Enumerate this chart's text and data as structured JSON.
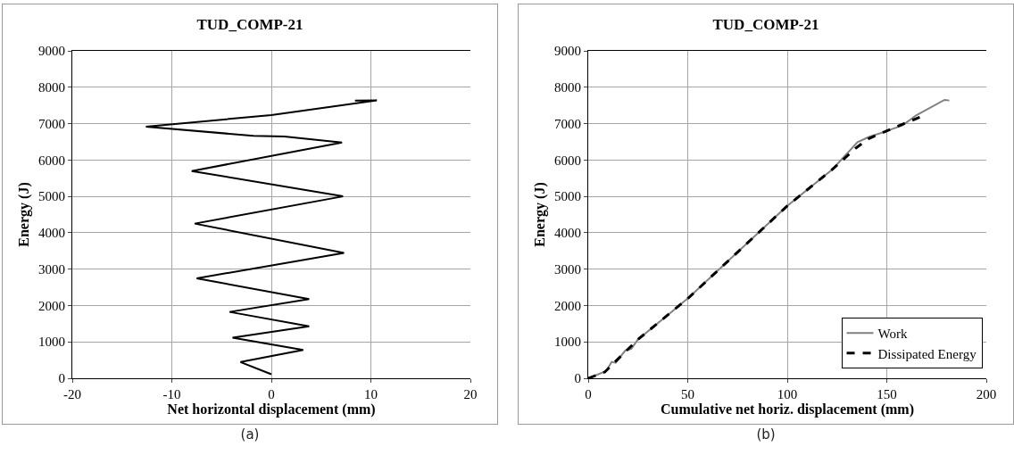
{
  "chart_data": [
    {
      "type": "line",
      "title": "TUD_COMP-21",
      "xlabel": "Net horizontal displacement (mm)",
      "ylabel": "Energy (J)",
      "annotations": [
        "(a)"
      ],
      "x": [
        0,
        -3.1,
        3.2,
        -3.9,
        3.8,
        -4.2,
        3.8,
        -7.5,
        7.3,
        -7.7,
        7.2,
        -8.0,
        7.1,
        1.3,
        -1.8,
        -12.6,
        0,
        10.6,
        8.4
      ],
      "series": [
        {
          "color": "#000000",
          "values": [
            110,
            445,
            780,
            1118,
            1429,
            1824,
            2176,
            2748,
            3445,
            4252,
            5000,
            5697,
            6479,
            6647,
            6664,
            6916,
            7235,
            7639,
            7630
          ]
        }
      ],
      "xlim": [
        -20,
        20
      ],
      "xticks": [
        -20,
        -10,
        0,
        10,
        20
      ],
      "ylim": [
        0,
        9000
      ],
      "yticks": [
        0,
        1000,
        2000,
        3000,
        4000,
        5000,
        6000,
        7000,
        8000,
        9000
      ],
      "grid": true,
      "legend": false,
      "line_style": "solid"
    },
    {
      "type": "line",
      "title": "TUD_COMP-21",
      "xlabel": "Cumulative net horiz. displacement (mm)",
      "ylabel": "Energy (J)",
      "annotations": [
        "(b)"
      ],
      "series": [
        {
          "name": "Work",
          "color": "#808080",
          "line_style": "solid",
          "x": [
            0,
            9,
            11.8,
            13.8,
            18.6,
            21.6,
            24.9,
            50.4,
            99.6,
            122.6,
            135.3,
            141,
            149,
            158,
            164.7,
            179,
            181.4
          ],
          "values": [
            0,
            196,
            451,
            425,
            765,
            808,
            1063,
            2211,
            4719,
            5740,
            6488,
            6633,
            6777,
            6956,
            7228,
            7653,
            7636
          ]
        },
        {
          "name": "Dissipated Energy",
          "color": "#000000",
          "line_style": "dashed",
          "x": [
            0,
            8.3,
            12.2,
            24.9,
            50.4,
            99.6,
            122.6,
            134.6,
            141,
            149,
            168.7
          ],
          "values": [
            0,
            170,
            383,
            1063,
            2211,
            4719,
            5740,
            6335,
            6590,
            6777,
            7228
          ]
        }
      ],
      "xlim": [
        0,
        200
      ],
      "xticks": [
        0,
        50,
        100,
        150,
        200
      ],
      "ylim": [
        0,
        9000
      ],
      "yticks": [
        0,
        1000,
        2000,
        3000,
        4000,
        5000,
        6000,
        7000,
        8000,
        9000
      ],
      "grid": true,
      "legend": "bottom right"
    }
  ]
}
